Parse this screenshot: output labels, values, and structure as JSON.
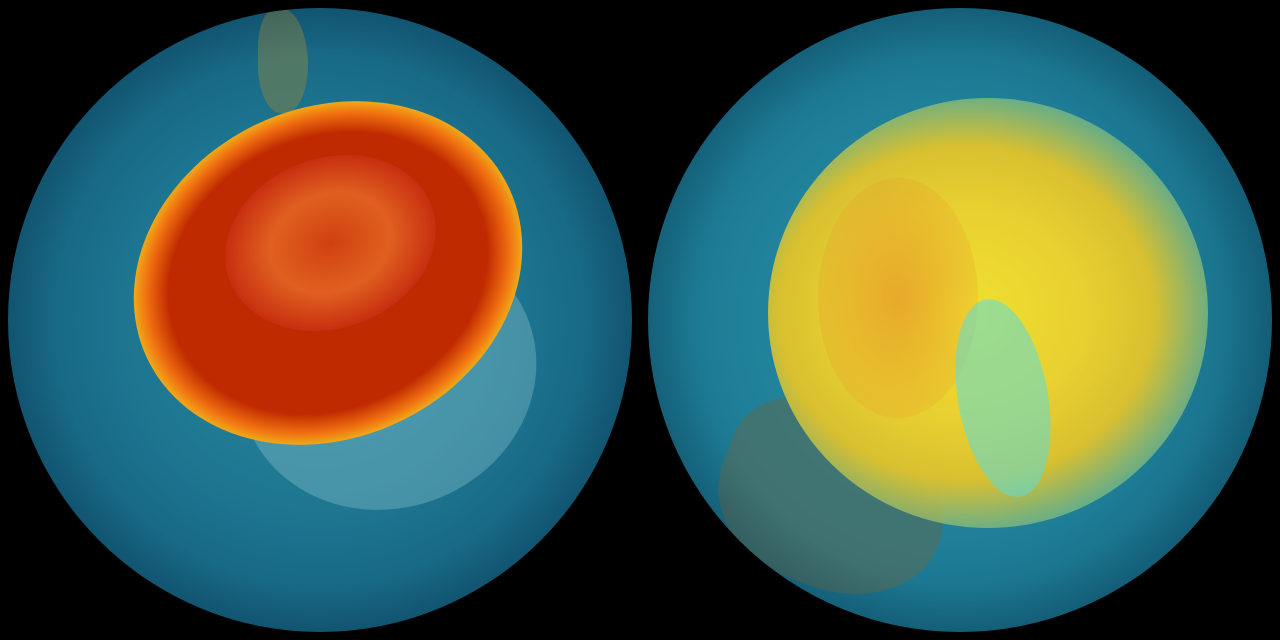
{
  "globes": [
    {
      "view": "south-pole",
      "colors": {
        "ocean": "#1d7590",
        "hole_core": "#c02a00",
        "hole_ring": "#f07010",
        "edge": "#f0d020",
        "rim": "#40d0d8"
      }
    },
    {
      "view": "north-pole",
      "colors": {
        "ocean": "#1f7f98",
        "high": "#f0e030",
        "mid": "#e0b030",
        "rim": "#60d8d0"
      }
    }
  ]
}
